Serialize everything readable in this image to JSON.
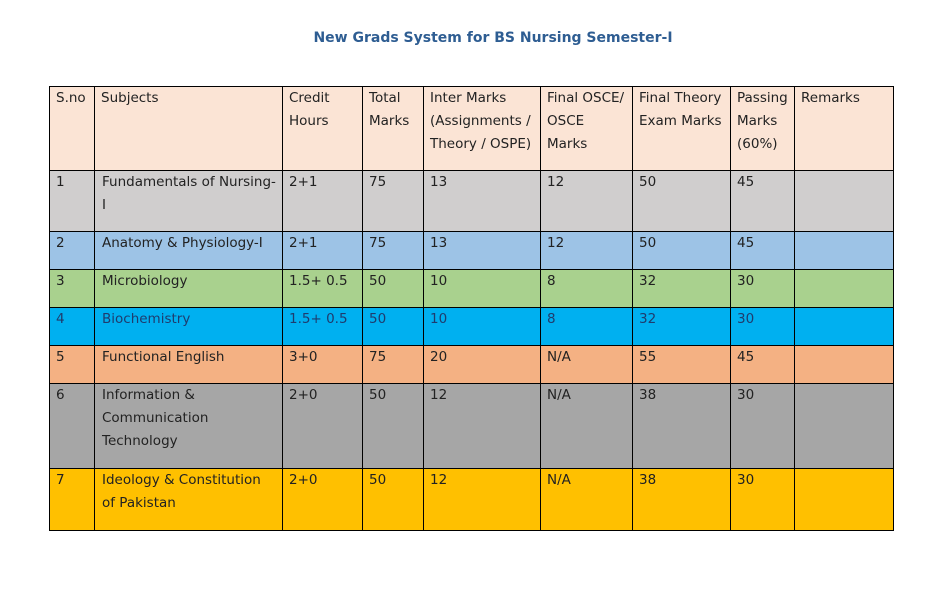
{
  "title": "New Grads System for BS Nursing Semester-I",
  "headers": {
    "sno": "S.no",
    "subjects": "Subjects",
    "credit": "Credit Hours",
    "total": "Total Marks",
    "inter": "Inter Marks (Assignments / Theory / OSPE)",
    "osce": "Final OSCE/ OSCE Marks",
    "theory": "Final Theory Exam Marks",
    "passing": "Passing Marks (60%)",
    "remarks": "Remarks"
  },
  "rows": [
    {
      "sno": "1",
      "subject": "Fundamentals of Nursing-I",
      "credit": "2+1",
      "total": "75",
      "inter": "13",
      "osce": "12",
      "theory": "50",
      "passing": "45",
      "remarks": "",
      "color": "#d0cece",
      "text_color": "#222222"
    },
    {
      "sno": "2",
      "subject": "Anatomy & Physiology-I",
      "credit": "2+1",
      "total": "75",
      "inter": "13",
      "osce": "12",
      "theory": "50",
      "passing": "45",
      "remarks": "",
      "color": "#9dc3e6",
      "text_color": "#222222"
    },
    {
      "sno": "3",
      "subject": "Microbiology",
      "credit": "1.5+ 0.5",
      "total": "50",
      "inter": "10",
      "osce": "8",
      "theory": "32",
      "passing": "30",
      "remarks": "",
      "color": "#a9d18e",
      "text_color": "#222222"
    },
    {
      "sno": "4",
      "subject": "Biochemistry",
      "credit": "1.5+ 0.5",
      "total": "50",
      "inter": "10",
      "osce": "8",
      "theory": "32",
      "passing": "30",
      "remarks": "",
      "color": "#00b0f0",
      "text_color": "#1f3c6e"
    },
    {
      "sno": "5",
      "subject": "Functional English",
      "credit": "3+0",
      "total": "75",
      "inter": "20",
      "osce": "N/A",
      "theory": "55",
      "passing": "45",
      "remarks": "",
      "color": "#f4b183",
      "text_color": "#222222"
    },
    {
      "sno": "6",
      "subject": "Information & Communication Technology",
      "credit": "2+0",
      "total": "50",
      "inter": "12",
      "osce": "N/A",
      "theory": "38",
      "passing": "30",
      "remarks": "",
      "color": "#a6a6a6",
      "text_color": "#222222"
    },
    {
      "sno": "7",
      "subject": "Ideology & Constitution of Pakistan",
      "credit": "2+0",
      "total": "50",
      "inter": "12",
      "osce": "N/A",
      "theory": "38",
      "passing": "30",
      "remarks": "",
      "color": "#ffc000",
      "text_color": "#222222"
    }
  ]
}
